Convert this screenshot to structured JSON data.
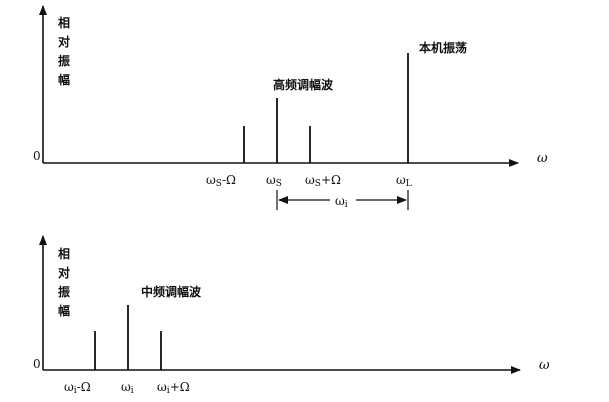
{
  "top_panel": {
    "y_axis_label": [
      "相",
      "对",
      "振",
      "幅"
    ],
    "zero_label": "0",
    "x_axis_label": "ω",
    "am_wave_label": "高频调幅波",
    "lo_label": "本机振荡",
    "tick_labels": {
      "ws_minus": "ωS-Ω",
      "ws": "ωS",
      "ws_plus": "ωS+Ω",
      "wl": "ωL"
    },
    "wi_bracket_label": "ωi",
    "lines": [
      {
        "name": "ws-minus-omega",
        "relative_amplitude": 0.27
      },
      {
        "name": "ws",
        "relative_amplitude": 0.53
      },
      {
        "name": "ws-plus-omega",
        "relative_amplitude": 0.27
      },
      {
        "name": "wl",
        "relative_amplitude": 0.93
      }
    ]
  },
  "bottom_panel": {
    "y_axis_label": [
      "相",
      "对",
      "振",
      "幅"
    ],
    "zero_label": "0",
    "x_axis_label": "ω",
    "if_wave_label": "中频调幅波",
    "tick_labels": {
      "wi_minus": "ωi-Ω",
      "wi": "ωi",
      "wi_plus": "ωi+Ω"
    },
    "lines": [
      {
        "name": "wi-minus-omega",
        "relative_amplitude": 0.3
      },
      {
        "name": "wi",
        "relative_amplitude": 0.48
      },
      {
        "name": "wi-plus-omega",
        "relative_amplitude": 0.3
      }
    ]
  }
}
